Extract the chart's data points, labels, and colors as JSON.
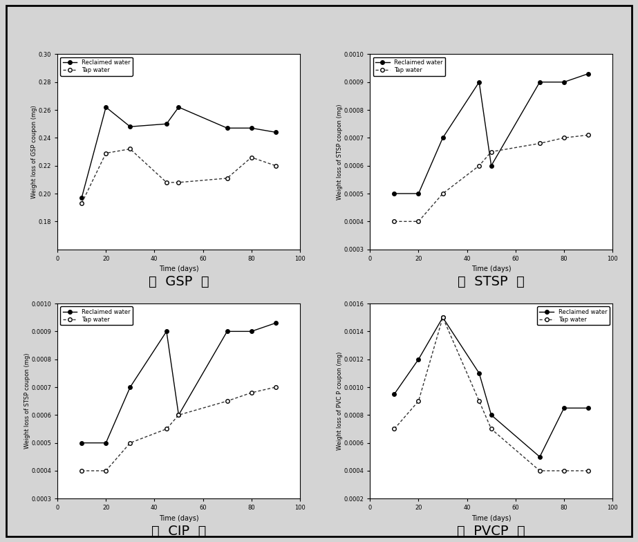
{
  "gsp": {
    "ylabel": "Weight loss of GSP coupon (mg)",
    "xlabel": "Time (days)",
    "reclaimed": {
      "x": [
        10,
        20,
        30,
        45,
        50,
        70,
        80,
        90
      ],
      "y": [
        0.197,
        0.262,
        0.248,
        0.25,
        0.262,
        0.247,
        0.247,
        0.244
      ]
    },
    "tap": {
      "x": [
        10,
        20,
        30,
        45,
        50,
        70,
        80,
        90
      ],
      "y": [
        0.193,
        0.229,
        0.232,
        0.208,
        0.208,
        0.211,
        0.226,
        0.22
      ]
    },
    "ylim": [
      0.16,
      0.3
    ],
    "yticks": [
      0.18,
      0.2,
      0.22,
      0.24,
      0.26,
      0.28,
      0.3
    ],
    "xlim": [
      0,
      100
    ],
    "xticks": [
      0,
      20,
      40,
      60,
      80,
      100
    ],
    "caption": "〈  GSP  〉"
  },
  "stsp": {
    "ylabel": "Weight loss of STSP coupon (mg)",
    "xlabel": "Time (days)",
    "reclaimed": {
      "x": [
        10,
        20,
        30,
        45,
        50,
        70,
        80,
        90
      ],
      "y": [
        0.0005,
        0.0005,
        0.0007,
        0.0009,
        0.0006,
        0.0009,
        0.0009,
        0.00093
      ]
    },
    "tap": {
      "x": [
        10,
        20,
        30,
        45,
        50,
        70,
        80,
        90
      ],
      "y": [
        0.0004,
        0.0004,
        0.0005,
        0.0006,
        0.00065,
        0.00068,
        0.0007,
        0.00071
      ]
    },
    "ylim": [
      0.0003,
      0.001
    ],
    "yticks": [
      0.0003,
      0.0004,
      0.0005,
      0.0006,
      0.0007,
      0.0008,
      0.0009,
      0.001
    ],
    "xlim": [
      0,
      100
    ],
    "xticks": [
      0,
      20,
      40,
      60,
      80,
      100
    ],
    "caption": "〈  STSP  〉"
  },
  "cip": {
    "ylabel": "Weight loss of STSP coupon (mg)",
    "xlabel": "Time (days)",
    "reclaimed": {
      "x": [
        10,
        20,
        30,
        45,
        50,
        70,
        80,
        90
      ],
      "y": [
        0.0005,
        0.0005,
        0.0007,
        0.0009,
        0.0006,
        0.0009,
        0.0009,
        0.00093
      ]
    },
    "tap": {
      "x": [
        10,
        20,
        30,
        45,
        50,
        70,
        80,
        90
      ],
      "y": [
        0.0004,
        0.0004,
        0.0005,
        0.00055,
        0.0006,
        0.00065,
        0.00068,
        0.0007
      ]
    },
    "ylim": [
      0.0003,
      0.001
    ],
    "yticks": [
      0.0003,
      0.0004,
      0.0005,
      0.0006,
      0.0007,
      0.0008,
      0.0009,
      0.001
    ],
    "xlim": [
      0,
      100
    ],
    "xticks": [
      0,
      20,
      40,
      60,
      80,
      100
    ],
    "caption": "〈  CIP  〉"
  },
  "pvcp": {
    "ylabel": "Weight loss of PVC P coupon (mg)",
    "xlabel": "Time (days)",
    "reclaimed": {
      "x": [
        10,
        20,
        30,
        45,
        50,
        70,
        80,
        90
      ],
      "y": [
        0.00095,
        0.0012,
        0.0015,
        0.0011,
        0.0008,
        0.0005,
        0.00085,
        0.00085
      ]
    },
    "tap": {
      "x": [
        10,
        20,
        30,
        45,
        50,
        70,
        80,
        90
      ],
      "y": [
        0.0007,
        0.0009,
        0.0015,
        0.0009,
        0.0007,
        0.0004,
        0.0004,
        0.0004
      ]
    },
    "ylim": [
      0.0002,
      0.0016
    ],
    "yticks": [
      0.0002,
      0.0004,
      0.0006,
      0.0008,
      0.001,
      0.0012,
      0.0014,
      0.0016
    ],
    "xlim": [
      0,
      100
    ],
    "xticks": [
      0,
      20,
      40,
      60,
      80,
      100
    ],
    "caption": "〈  PVCP  〉"
  },
  "legend": {
    "reclaimed_label": "Reclaimed water",
    "tap_label": "Tap water"
  },
  "reclaimed_color": "#000000",
  "tap_color": "#333333",
  "background_color": "#d4d4d4",
  "plot_bg": "#ffffff",
  "outer_border_color": "#000000"
}
